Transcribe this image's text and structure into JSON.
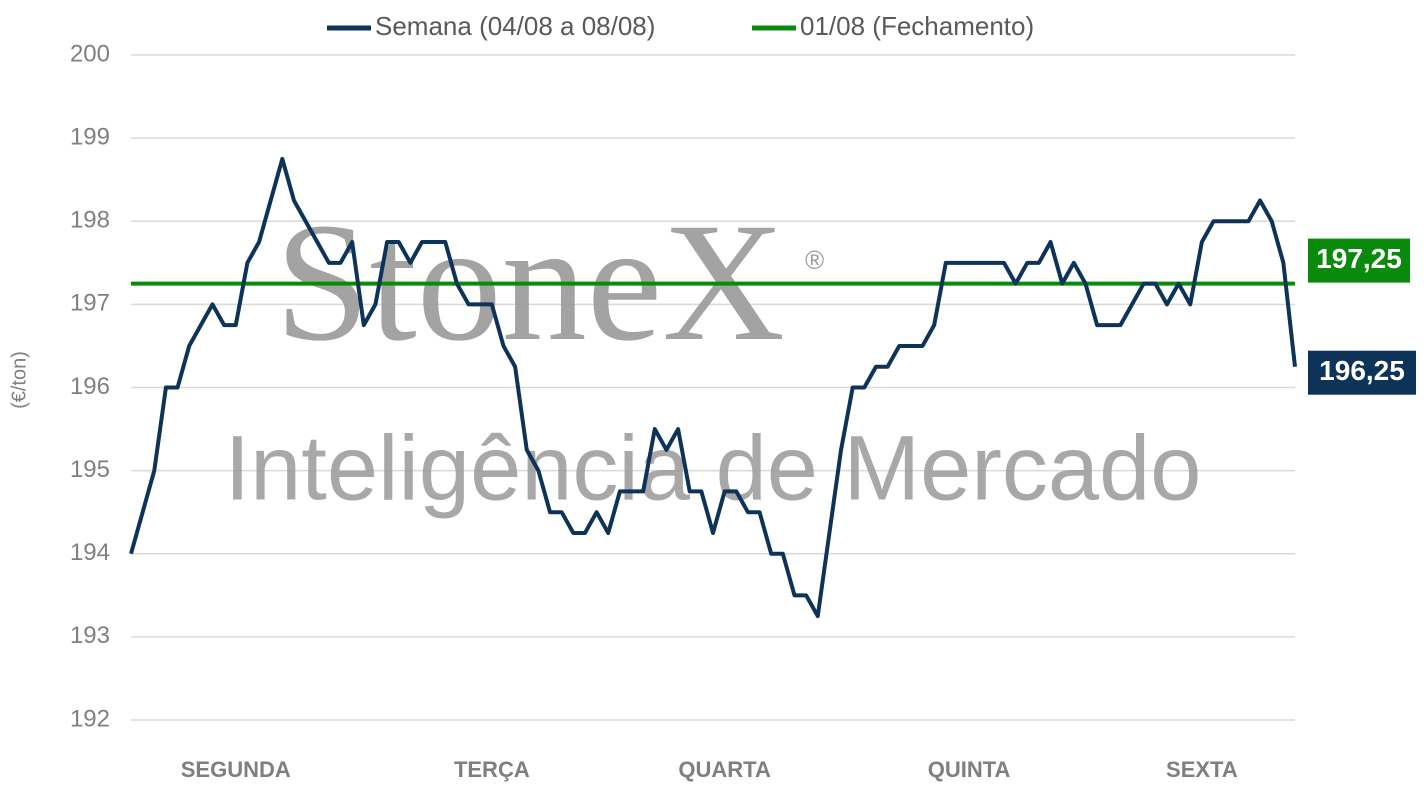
{
  "chart_data": {
    "type": "line",
    "watermark": {
      "brand": "StoneX",
      "mark": "®",
      "tagline": "Inteligência de Mercado"
    },
    "ylabel": "(€/ton)",
    "ylim": [
      192,
      200
    ],
    "yticks": [
      192,
      193,
      194,
      195,
      196,
      197,
      198,
      199,
      200
    ],
    "grid": true,
    "legend": "top",
    "categories": [
      null,
      null,
      null,
      null,
      null,
      null,
      null,
      null,
      null,
      "SEGUNDA",
      null,
      null,
      null,
      null,
      null,
      null,
      null,
      null,
      null,
      null,
      null,
      null,
      null,
      null,
      null,
      null,
      null,
      null,
      null,
      null,
      null,
      "TERÇA",
      null,
      null,
      null,
      null,
      null,
      null,
      null,
      null,
      null,
      null,
      null,
      null,
      null,
      null,
      null,
      null,
      null,
      null,
      null,
      "QUARTA",
      null,
      null,
      null,
      null,
      null,
      null,
      null,
      null,
      null,
      null,
      null,
      null,
      null,
      null,
      null,
      null,
      null,
      null,
      null,
      null,
      "QUINTA",
      null,
      null,
      null,
      null,
      null,
      null,
      null,
      null,
      null,
      null,
      null,
      null,
      null,
      null,
      null,
      null,
      null,
      null,
      null,
      "SEXTA",
      null,
      null,
      null,
      null,
      null,
      null,
      null,
      null
    ],
    "series": [
      {
        "name": "Semana (04/08 a 08/08)",
        "color": "#0d3358",
        "values": [
          194.0,
          194.5,
          195.0,
          196.0,
          196.0,
          196.5,
          196.75,
          197.0,
          196.75,
          196.75,
          197.5,
          197.75,
          198.25,
          198.75,
          198.25,
          198.0,
          197.75,
          197.5,
          197.5,
          197.75,
          196.75,
          197.0,
          197.75,
          197.75,
          197.5,
          197.75,
          197.75,
          197.75,
          197.25,
          197.0,
          197.0,
          197.0,
          196.5,
          196.25,
          195.25,
          195.0,
          194.5,
          194.5,
          194.25,
          194.25,
          194.5,
          194.25,
          194.75,
          194.75,
          194.75,
          195.5,
          195.25,
          195.5,
          194.75,
          194.75,
          194.25,
          194.75,
          194.75,
          194.5,
          194.5,
          194.0,
          194.0,
          193.5,
          193.5,
          193.25,
          194.25,
          195.25,
          196.0,
          196.0,
          196.25,
          196.25,
          196.5,
          196.5,
          196.5,
          196.75,
          197.5,
          197.5,
          197.5,
          197.5,
          197.5,
          197.5,
          197.25,
          197.5,
          197.5,
          197.75,
          197.25,
          197.5,
          197.25,
          196.75,
          196.75,
          196.75,
          197.0,
          197.25,
          197.25,
          197.0,
          197.25,
          197.0,
          197.75,
          198.0,
          198.0,
          198.0,
          198.0,
          198.25,
          198.0,
          197.5,
          196.25
        ],
        "value_labels": [
          null,
          null,
          null,
          null,
          null,
          null,
          null,
          null,
          null,
          null,
          null,
          null,
          null,
          null,
          null,
          null,
          null,
          null,
          null,
          null,
          null,
          null,
          null,
          null,
          null,
          null,
          null,
          null,
          null,
          null,
          null,
          null,
          null,
          null,
          null,
          null,
          null,
          null,
          null,
          null,
          null,
          null,
          null,
          null,
          null,
          null,
          null,
          null,
          null,
          null,
          null,
          null,
          null,
          null,
          null,
          null,
          null,
          null,
          null,
          null,
          null,
          null,
          null,
          null,
          null,
          null,
          null,
          null,
          null,
          null,
          null,
          null,
          null,
          null,
          null,
          null,
          null,
          null,
          null,
          null,
          null,
          null,
          null,
          null,
          null,
          null,
          null,
          null,
          null,
          null,
          null,
          null,
          null,
          null,
          null,
          null,
          null,
          null,
          null,
          null,
          "196,25"
        ]
      }
    ],
    "reference": {
      "name": "01/08 (Fechamento)",
      "color": "#0a8a0a",
      "value": 197.25,
      "label": "197,25"
    }
  }
}
